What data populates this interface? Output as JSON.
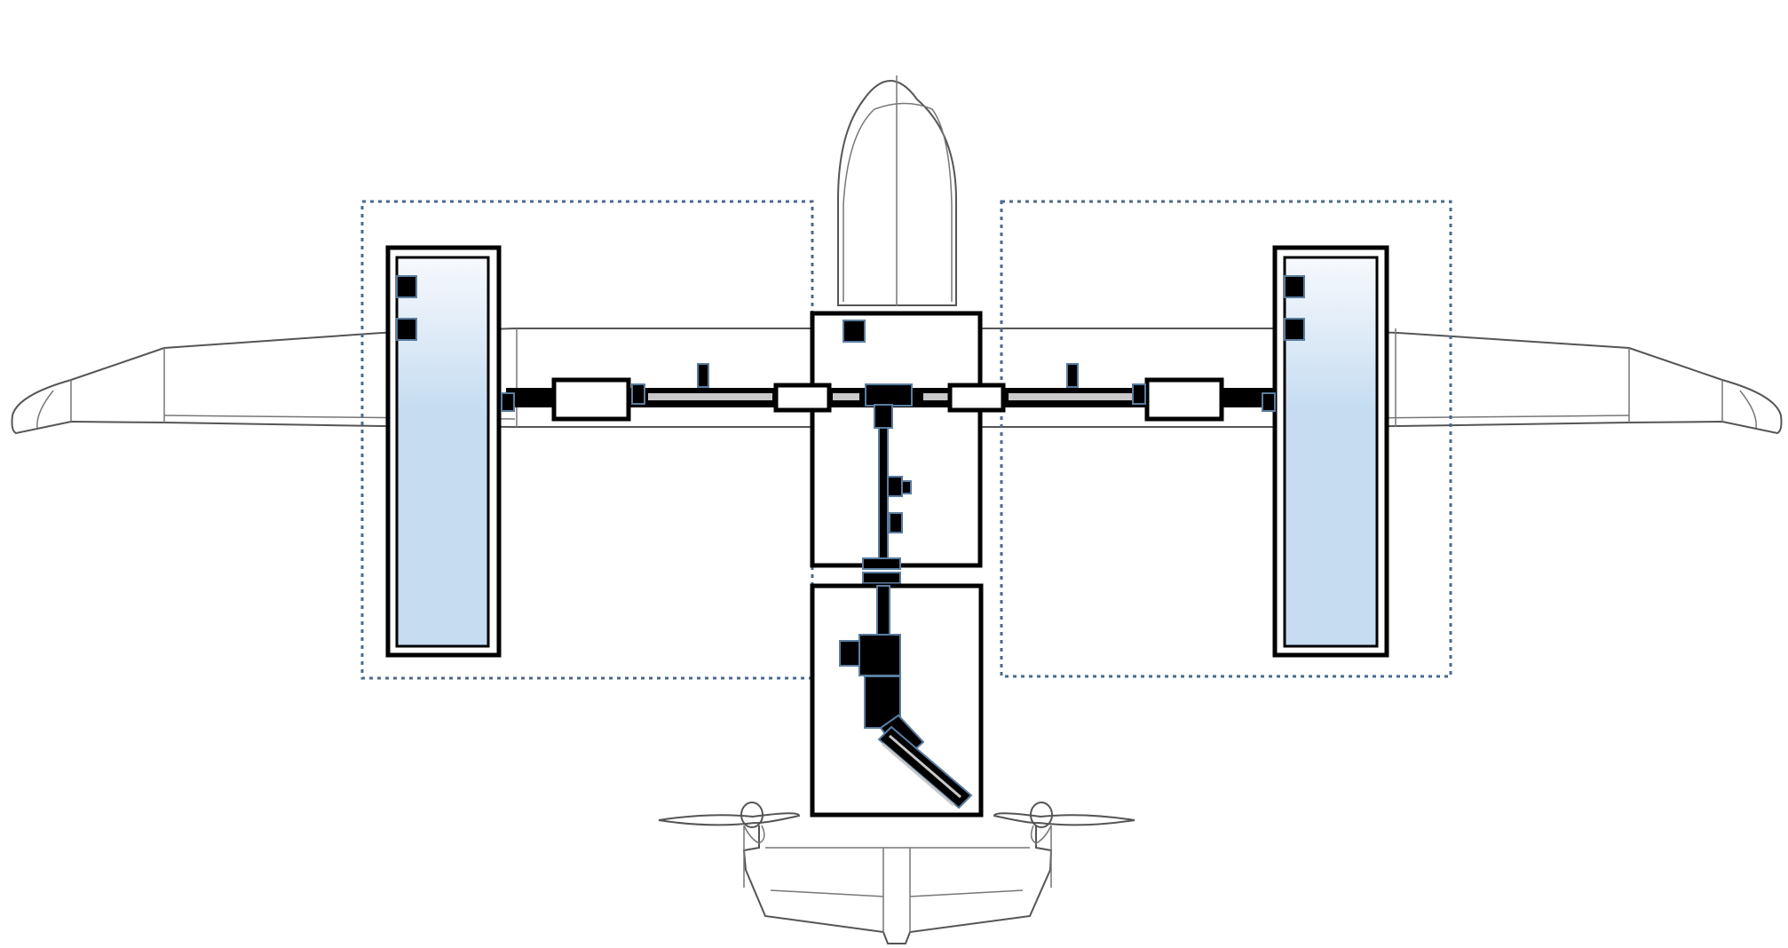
{
  "diagram": {
    "subject": "aircraft-top-view-layout",
    "components": [
      "left-wing-panel",
      "right-wing-panel",
      "center-box-upper",
      "center-box-lower",
      "nose-outline",
      "tail-outline",
      "left-propeller",
      "right-propeller",
      "left-zone",
      "right-zone"
    ],
    "colors": {
      "line": "#000000",
      "outline": "#555555",
      "zone_border": "#4a6a8e",
      "panel_gradient_top": "#f7f9fd",
      "panel_gradient_bottom": "#c5dcf1",
      "component_stroke": "#5a7da0"
    }
  }
}
